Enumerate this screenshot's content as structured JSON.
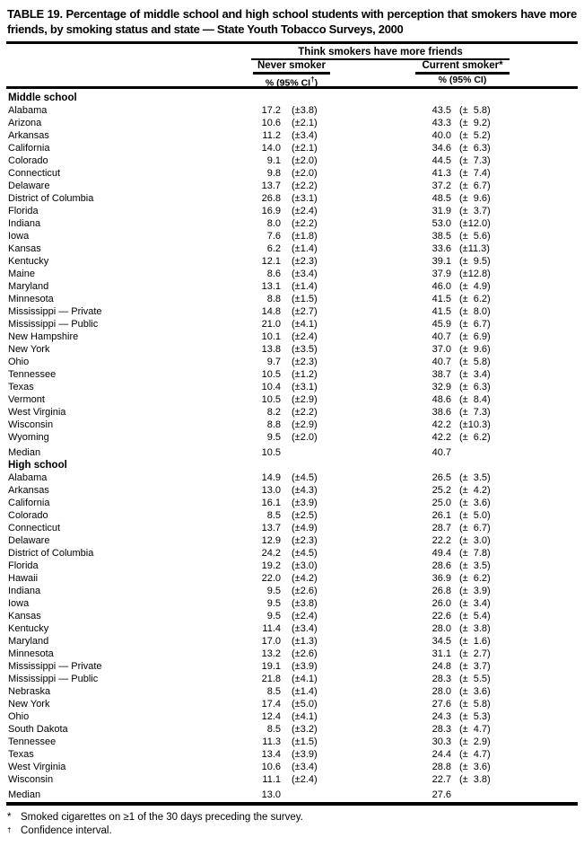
{
  "title": "TABLE 19. Percentage of middle school and high school students with perception that smokers have more friends, by smoking status and state — State Youth Tobacco Surveys, 2000",
  "header": {
    "spanner": "Think smokers have more friends",
    "never_smoker_label": "Never smoker",
    "current_smoker_label": "Current smoker*",
    "never_smoker_sub": "% (95% CI†)",
    "current_smoker_sub": "% (95% CI)"
  },
  "table": {
    "sections": [
      {
        "label": "Middle school",
        "rows": [
          {
            "state": "Alabama",
            "ns": "17.2",
            "ns_ci": "(±3.8)",
            "cs": "43.5",
            "cs_ci": "(± 5.8)"
          },
          {
            "state": "Arizona",
            "ns": "10.6",
            "ns_ci": "(±2.1)",
            "cs": "43.3",
            "cs_ci": "(± 9.2)"
          },
          {
            "state": "Arkansas",
            "ns": "11.2",
            "ns_ci": "(±3.4)",
            "cs": "40.0",
            "cs_ci": "(± 5.2)"
          },
          {
            "state": "California",
            "ns": "14.0",
            "ns_ci": "(±2.1)",
            "cs": "34.6",
            "cs_ci": "(± 6.3)"
          },
          {
            "state": "Colorado",
            "ns": "9.1",
            "ns_ci": "(±2.0)",
            "cs": "44.5",
            "cs_ci": "(± 7.3)"
          },
          {
            "state": "Connecticut",
            "ns": "9.8",
            "ns_ci": "(±2.0)",
            "cs": "41.3",
            "cs_ci": "(± 7.4)"
          },
          {
            "state": "Delaware",
            "ns": "13.7",
            "ns_ci": "(±2.2)",
            "cs": "37.2",
            "cs_ci": "(± 6.7)"
          },
          {
            "state": "District of Columbia",
            "ns": "26.8",
            "ns_ci": "(±3.1)",
            "cs": "48.5",
            "cs_ci": "(± 9.6)"
          },
          {
            "state": "Florida",
            "ns": "16.9",
            "ns_ci": "(±2.4)",
            "cs": "31.9",
            "cs_ci": "(± 3.7)"
          },
          {
            "state": "Indiana",
            "ns": "8.0",
            "ns_ci": "(±2.2)",
            "cs": "53.0",
            "cs_ci": "(±12.0)"
          },
          {
            "state": "Iowa",
            "ns": "7.6",
            "ns_ci": "(±1.8)",
            "cs": "38.5",
            "cs_ci": "(± 5.6)"
          },
          {
            "state": "Kansas",
            "ns": "6.2",
            "ns_ci": "(±1.4)",
            "cs": "33.6",
            "cs_ci": "(±11.3)"
          },
          {
            "state": "Kentucky",
            "ns": "12.1",
            "ns_ci": "(±2.3)",
            "cs": "39.1",
            "cs_ci": "(± 9.5)"
          },
          {
            "state": "Maine",
            "ns": "8.6",
            "ns_ci": "(±3.4)",
            "cs": "37.9",
            "cs_ci": "(±12.8)"
          },
          {
            "state": "Maryland",
            "ns": "13.1",
            "ns_ci": "(±1.4)",
            "cs": "46.0",
            "cs_ci": "(± 4.9)"
          },
          {
            "state": "Minnesota",
            "ns": "8.8",
            "ns_ci": "(±1.5)",
            "cs": "41.5",
            "cs_ci": "(± 6.2)"
          },
          {
            "state": "Mississippi — Private",
            "ns": "14.8",
            "ns_ci": "(±2.7)",
            "cs": "41.5",
            "cs_ci": "(± 8.0)"
          },
          {
            "state": "Mississippi — Public",
            "ns": "21.0",
            "ns_ci": "(±4.1)",
            "cs": "45.9",
            "cs_ci": "(± 6.7)"
          },
          {
            "state": "New Hampshire",
            "ns": "10.1",
            "ns_ci": "(±2.4)",
            "cs": "40.7",
            "cs_ci": "(± 6.9)"
          },
          {
            "state": "New York",
            "ns": "13.8",
            "ns_ci": "(±3.5)",
            "cs": "37.0",
            "cs_ci": "(± 9.6)"
          },
          {
            "state": "Ohio",
            "ns": "9.7",
            "ns_ci": "(±2.3)",
            "cs": "40.7",
            "cs_ci": "(± 5.8)"
          },
          {
            "state": "Tennessee",
            "ns": "10.5",
            "ns_ci": "(±1.2)",
            "cs": "38.7",
            "cs_ci": "(± 3.4)"
          },
          {
            "state": "Texas",
            "ns": "10.4",
            "ns_ci": "(±3.1)",
            "cs": "32.9",
            "cs_ci": "(± 6.3)"
          },
          {
            "state": "Vermont",
            "ns": "10.5",
            "ns_ci": "(±2.9)",
            "cs": "48.6",
            "cs_ci": "(± 8.4)"
          },
          {
            "state": "West Virginia",
            "ns": "8.2",
            "ns_ci": "(±2.2)",
            "cs": "38.6",
            "cs_ci": "(± 7.3)"
          },
          {
            "state": "Wisconsin",
            "ns": "8.8",
            "ns_ci": "(±2.9)",
            "cs": "42.2",
            "cs_ci": "(±10.3)"
          },
          {
            "state": "Wyoming",
            "ns": "9.5",
            "ns_ci": "(±2.0)",
            "cs": "42.2",
            "cs_ci": "(± 6.2)"
          },
          {
            "state": "Median",
            "ns": "10.5",
            "ns_ci": "",
            "cs": "40.7",
            "cs_ci": "",
            "median": true
          }
        ]
      },
      {
        "label": "High school",
        "rows": [
          {
            "state": "Alabama",
            "ns": "14.9",
            "ns_ci": "(±4.5)",
            "cs": "26.5",
            "cs_ci": "(± 3.5)"
          },
          {
            "state": "Arkansas",
            "ns": "13.0",
            "ns_ci": "(±4.3)",
            "cs": "25.2",
            "cs_ci": "(± 4.2)"
          },
          {
            "state": "California",
            "ns": "16.1",
            "ns_ci": "(±3.9)",
            "cs": "25.0",
            "cs_ci": "(± 3.6)"
          },
          {
            "state": "Colorado",
            "ns": "8.5",
            "ns_ci": "(±2.5)",
            "cs": "26.1",
            "cs_ci": "(± 5.0)"
          },
          {
            "state": "Connecticut",
            "ns": "13.7",
            "ns_ci": "(±4.9)",
            "cs": "28.7",
            "cs_ci": "(± 6.7)"
          },
          {
            "state": "Delaware",
            "ns": "12.9",
            "ns_ci": "(±2.3)",
            "cs": "22.2",
            "cs_ci": "(± 3.0)"
          },
          {
            "state": "District of Columbia",
            "ns": "24.2",
            "ns_ci": "(±4.5)",
            "cs": "49.4",
            "cs_ci": "(± 7.8)"
          },
          {
            "state": "Florida",
            "ns": "19.2",
            "ns_ci": "(±3.0)",
            "cs": "28.6",
            "cs_ci": "(± 3.5)"
          },
          {
            "state": "Hawaii",
            "ns": "22.0",
            "ns_ci": "(±4.2)",
            "cs": "36.9",
            "cs_ci": "(± 6.2)"
          },
          {
            "state": "Indiana",
            "ns": "9.5",
            "ns_ci": "(±2.6)",
            "cs": "26.8",
            "cs_ci": "(± 3.9)"
          },
          {
            "state": "Iowa",
            "ns": "9.5",
            "ns_ci": "(±3.8)",
            "cs": "26.0",
            "cs_ci": "(± 3.4)"
          },
          {
            "state": "Kansas",
            "ns": "9.5",
            "ns_ci": "(±2.4)",
            "cs": "22.6",
            "cs_ci": "(± 5.4)"
          },
          {
            "state": "Kentucky",
            "ns": "11.4",
            "ns_ci": "(±3.4)",
            "cs": "28.0",
            "cs_ci": "(± 3.8)"
          },
          {
            "state": "Maryland",
            "ns": "17.0",
            "ns_ci": "(±1.3)",
            "cs": "34.5",
            "cs_ci": "(± 1.6)"
          },
          {
            "state": "Minnesota",
            "ns": "13.2",
            "ns_ci": "(±2.6)",
            "cs": "31.1",
            "cs_ci": "(± 2.7)"
          },
          {
            "state": "Mississippi — Private",
            "ns": "19.1",
            "ns_ci": "(±3.9)",
            "cs": "24.8",
            "cs_ci": "(± 3.7)"
          },
          {
            "state": "Mississippi — Public",
            "ns": "21.8",
            "ns_ci": "(±4.1)",
            "cs": "28.3",
            "cs_ci": "(± 5.5)"
          },
          {
            "state": "Nebraska",
            "ns": "8.5",
            "ns_ci": "(±1.4)",
            "cs": "28.0",
            "cs_ci": "(± 3.6)"
          },
          {
            "state": "New York",
            "ns": "17.4",
            "ns_ci": "(±5.0)",
            "cs": "27.6",
            "cs_ci": "(± 5.8)"
          },
          {
            "state": "Ohio",
            "ns": "12.4",
            "ns_ci": "(±4.1)",
            "cs": "24.3",
            "cs_ci": "(± 5.3)"
          },
          {
            "state": "South Dakota",
            "ns": "8.5",
            "ns_ci": "(±3.2)",
            "cs": "28.3",
            "cs_ci": "(± 4.7)"
          },
          {
            "state": "Tennessee",
            "ns": "11.3",
            "ns_ci": "(±1.5)",
            "cs": "30.3",
            "cs_ci": "(± 2.9)"
          },
          {
            "state": "Texas",
            "ns": "13.4",
            "ns_ci": "(±3.9)",
            "cs": "24.4",
            "cs_ci": "(± 4.7)"
          },
          {
            "state": "West Virginia",
            "ns": "10.6",
            "ns_ci": "(±3.4)",
            "cs": "28.8",
            "cs_ci": "(± 3.6)"
          },
          {
            "state": "Wisconsin",
            "ns": "11.1",
            "ns_ci": "(±2.4)",
            "cs": "22.7",
            "cs_ci": "(± 3.8)"
          },
          {
            "state": "Median",
            "ns": "13.0",
            "ns_ci": "",
            "cs": "27.6",
            "cs_ci": "",
            "median": true
          }
        ]
      }
    ]
  },
  "footnotes": [
    {
      "marker": "*",
      "text": "Smoked cigarettes on ≥1 of the 30 days preceding the survey."
    },
    {
      "marker": "†",
      "text": "Confidence interval."
    }
  ],
  "colors": {
    "text": "#000000",
    "background": "#ffffff",
    "rule": "#000000"
  }
}
